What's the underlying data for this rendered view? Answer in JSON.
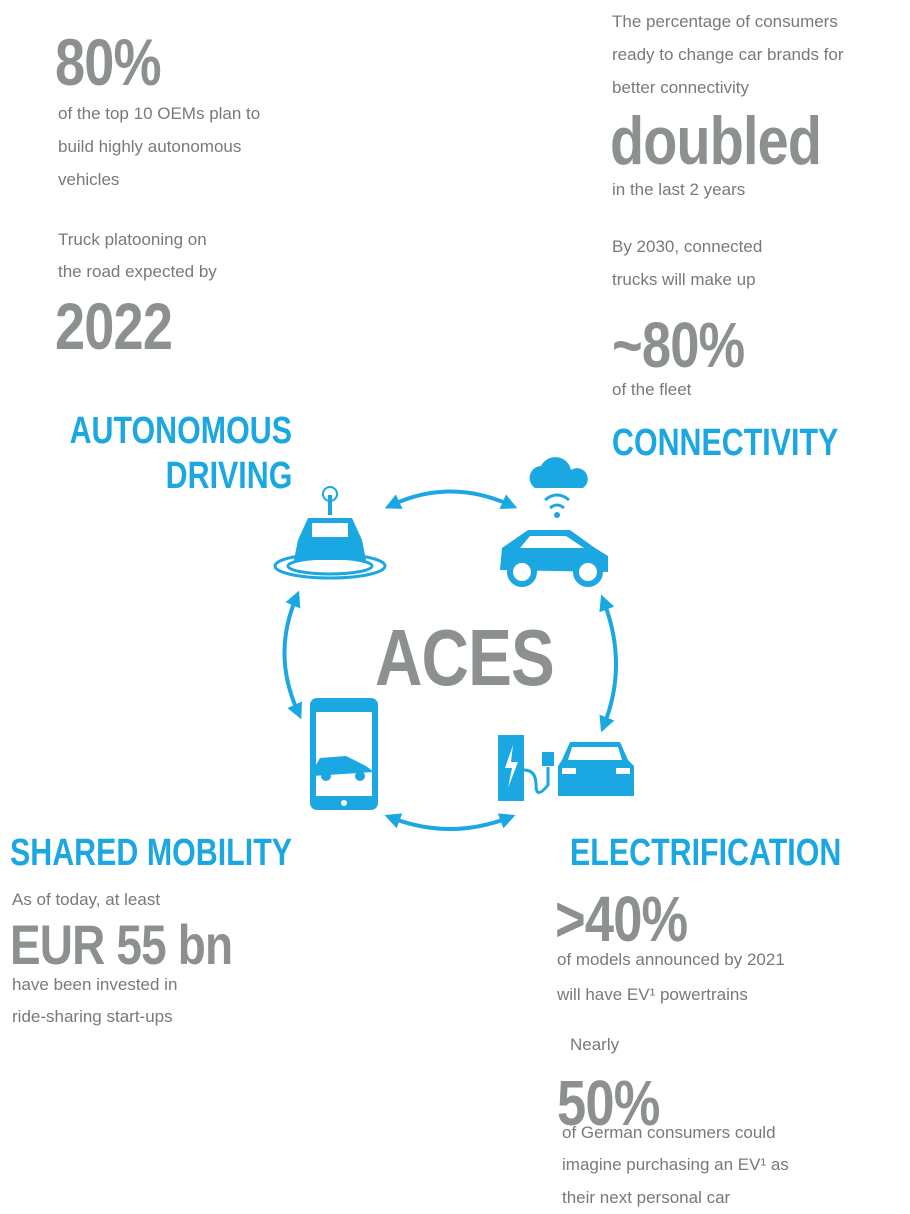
{
  "autonomous": {
    "heading": [
      "AUTONOMOUS",
      "DRIVING"
    ],
    "stat1": {
      "figure": "80%",
      "text": [
        "of the top 10 OEMs plan to",
        "build highly autonomous",
        "vehicles"
      ]
    },
    "stat2": {
      "intro": [
        "Truck platooning on",
        "the road expected by"
      ],
      "figure": "2022"
    }
  },
  "connectivity": {
    "heading": "CONNECTIVITY",
    "stat1": {
      "intro": [
        "The percentage of consumers",
        "ready to change car brands for",
        "better connectivity"
      ],
      "figure": "doubled",
      "text": "in the last 2 years"
    },
    "stat2": {
      "intro": [
        "By 2030, connected",
        "trucks will make up"
      ],
      "figure": "~80%",
      "text": "of the fleet"
    }
  },
  "center": "ACES",
  "shared": {
    "heading": "SHARED MOBILITY",
    "intro": "As of today, at least",
    "figure": "EUR 55 bn",
    "text": [
      "have been invested in",
      "ride-sharing start-ups"
    ]
  },
  "electrification": {
    "heading": "ELECTRIFICATION",
    "stat1": {
      "figure": ">40%",
      "text": [
        "of models announced by 2021",
        "will have EV¹ powertrains"
      ]
    },
    "stat2": {
      "intro": "Nearly",
      "figure": "50%",
      "text": [
        "of German consumers could",
        "imagine purchasing an EV¹ as",
        "their next personal car"
      ]
    }
  }
}
